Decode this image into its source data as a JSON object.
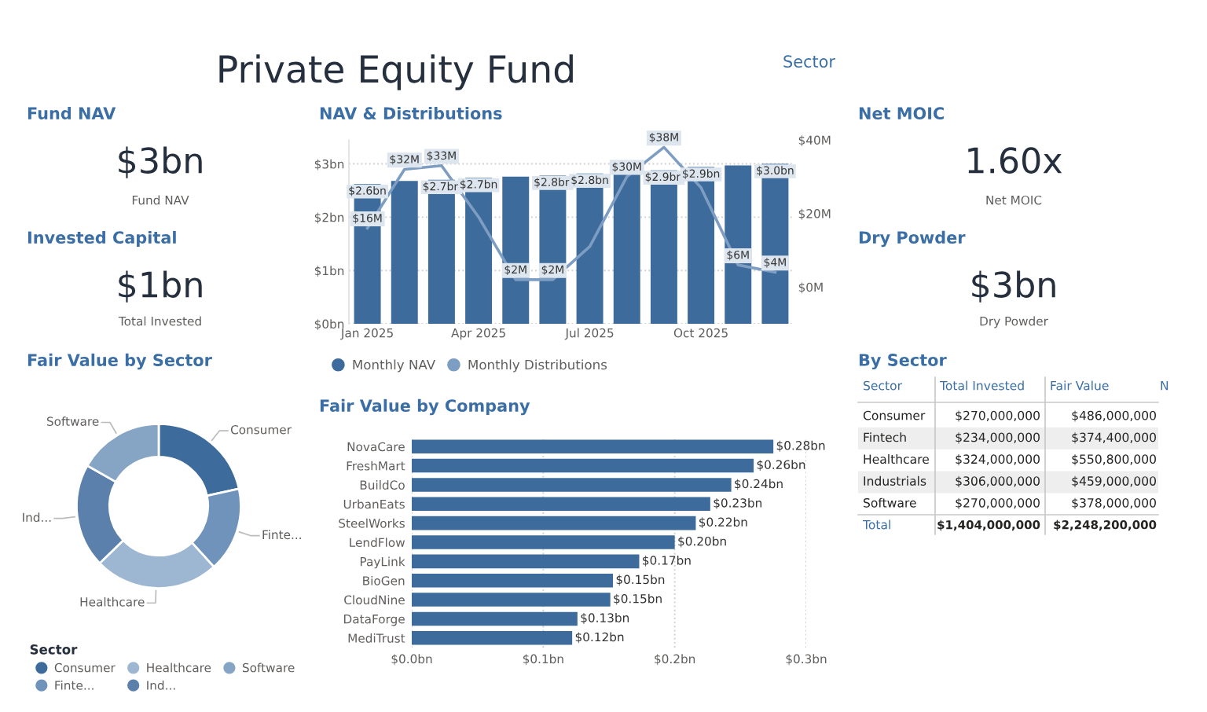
{
  "chart_data": [
    {
      "type": "other",
      "title": "Private Equity Fund",
      "annotations": [
        "Sector"
      ]
    },
    {
      "type": "other",
      "title": "Fund NAV",
      "annotations": [
        "$3bn",
        "Fund NAV"
      ]
    },
    {
      "type": "bar",
      "title": "NAV & Distributions",
      "categories": [
        "Jan 2025",
        null,
        null,
        "Apr 2025",
        null,
        null,
        "Jul 2025",
        null,
        null,
        "Oct 2025",
        null,
        null
      ],
      "series": [
        {
          "name": "Monthly NAV",
          "type": "bar",
          "color": "#3d6b9c",
          "values": [
            2.62,
            2.68,
            2.7,
            2.74,
            2.76,
            2.78,
            2.82,
            2.85,
            2.88,
            2.94,
            2.97,
            3.0
          ],
          "value_labels": [
            "$2.6bn",
            null,
            "$2.7bn",
            "$2.7bn",
            null,
            "$2.8bn",
            "$2.8bn",
            null,
            "$2.9bn",
            "$2.9bn",
            null,
            "$3.0bn"
          ]
        },
        {
          "name": "Monthly Distributions",
          "type": "line",
          "axis": "y2",
          "color": "#7d9dc2",
          "values": [
            16,
            32,
            33,
            19,
            2,
            2,
            11,
            30,
            38,
            27,
            6,
            4
          ],
          "value_labels": [
            "$16M",
            "$32M",
            "$33M",
            null,
            "$2M",
            "$2M",
            null,
            "$30M",
            "$38M",
            null,
            "$6M",
            "$4M"
          ]
        }
      ],
      "ylim": [
        0,
        3.45
      ],
      "yticks": [
        {
          "value": 0,
          "label": "$0bn"
        },
        {
          "value": 1,
          "label": "$1bn"
        },
        {
          "value": 2,
          "label": "$2bn"
        },
        {
          "value": 3,
          "label": "$3bn"
        }
      ],
      "y2lim": [
        -10,
        40
      ],
      "y2ticks": [
        {
          "value": 0,
          "label": "$0M"
        },
        {
          "value": 20,
          "label": "$20M"
        },
        {
          "value": 40,
          "label": "$40M"
        }
      ],
      "grid": "y",
      "legend": "bottom"
    },
    {
      "type": "other",
      "title": "Net MOIC",
      "annotations": [
        "1.60x",
        "Net MOIC"
      ]
    },
    {
      "type": "other",
      "title": "Invested Capital",
      "annotations": [
        "$1bn",
        "Total Invested"
      ]
    },
    {
      "type": "other",
      "title": "Dry Powder",
      "annotations": [
        "$3bn",
        "Dry Powder"
      ]
    },
    {
      "type": "donut",
      "title": "Fair Value by Sector",
      "categories": [
        "Consumer",
        "Finte...",
        "Healthcare",
        "Ind...",
        "Software"
      ],
      "values": [
        21.62,
        16.65,
        24.5,
        20.42,
        16.81
      ],
      "colors": [
        "#3d6b9c",
        "#6f93ba",
        "#9db7d2",
        "#5a80ab",
        "#86a4c4"
      ],
      "legend": "bottom",
      "legend_title": "Sector"
    },
    {
      "type": "bar",
      "orientation": "horizontal",
      "title": "Fair Value by Company",
      "categories": [
        "NovaCare",
        "FreshMart",
        "BuildCo",
        "UrbanEats",
        "SteelWorks",
        "LendFlow",
        "PayLink",
        "BioGen",
        "CloudNine",
        "DataForge",
        "MediTrust"
      ],
      "values": [
        0.275,
        0.26,
        0.243,
        0.227,
        0.216,
        0.2,
        0.173,
        0.153,
        0.151,
        0.126,
        0.122
      ],
      "color": "#3d6b9c",
      "value_labels": [
        "$0.28bn",
        "$0.26bn",
        "$0.24bn",
        "$0.23bn",
        "$0.22bn",
        "$0.20bn",
        "$0.17bn",
        "$0.15bn",
        "$0.15bn",
        "$0.13bn",
        "$0.12bn"
      ],
      "xlim": [
        0,
        0.3
      ],
      "xticks": [
        {
          "value": 0,
          "label": "$0.0bn"
        },
        {
          "value": 0.1,
          "label": "$0.1bn"
        },
        {
          "value": 0.2,
          "label": "$0.2bn"
        },
        {
          "value": 0.3,
          "label": "$0.3bn"
        }
      ],
      "grid": "x"
    },
    {
      "type": "other",
      "title": "By Sector",
      "categories": [
        "Sector",
        "Total Invested",
        "Fair Value",
        "N"
      ],
      "y_categories": [
        "Consumer",
        "Fintech",
        "Healthcare",
        "Industrials",
        "Software",
        "Total"
      ],
      "cell_labels": [
        [
          "$270,000,000",
          "$486,000,000"
        ],
        [
          "$234,000,000",
          "$374,400,000"
        ],
        [
          "$324,000,000",
          "$550,800,000"
        ],
        [
          "$306,000,000",
          "$459,000,000"
        ],
        [
          "$270,000,000",
          "$378,000,000"
        ],
        [
          "$1,404,000,000",
          "$2,248,200,000"
        ]
      ]
    }
  ]
}
